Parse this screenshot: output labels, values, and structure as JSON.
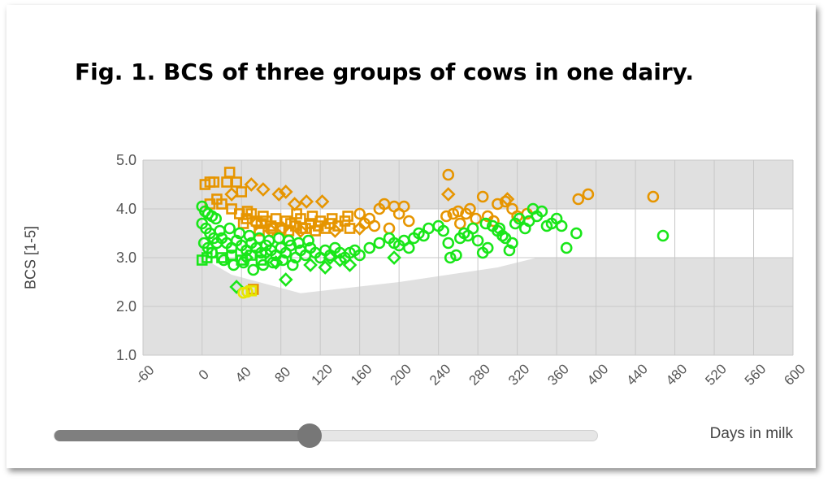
{
  "figure": {
    "title": "Fig. 1. BCS of three groups of cows in one dairy."
  },
  "slider": {
    "value_fraction": 0.47
  },
  "colors": {
    "orange": "#e69500",
    "green": "#19e619",
    "yellow": "#e6e600",
    "band_gray": "#e0e0e0",
    "band_white": "#ffffff",
    "grid": "#c8c8c8"
  },
  "chart_data": {
    "type": "scatter",
    "title": "",
    "xlabel": "Days in milk",
    "ylabel": "BCS [1-5]",
    "xlim": [
      -60,
      600
    ],
    "ylim": [
      1.0,
      5.0
    ],
    "x_ticks": [
      "-60",
      "0",
      "40",
      "80",
      "120",
      "160",
      "200",
      "240",
      "280",
      "320",
      "360",
      "400",
      "440",
      "480",
      "520",
      "560",
      "600"
    ],
    "y_ticks": [
      "1.0",
      "2.0",
      "3.0",
      "4.0",
      "5.0"
    ],
    "grid": true,
    "reference_band": {
      "upper": [
        [
          0,
          4.0
        ],
        [
          600,
          4.0
        ]
      ],
      "lower": [
        [
          0,
          3.0
        ],
        [
          30,
          2.65
        ],
        [
          100,
          2.27
        ],
        [
          200,
          2.5
        ],
        [
          300,
          2.8
        ],
        [
          340,
          3.0
        ],
        [
          600,
          3.0
        ]
      ]
    },
    "series": [
      {
        "color": "orange",
        "marker": "square",
        "points": [
          [
            3,
            4.5
          ],
          [
            8,
            4.55
          ],
          [
            12,
            4.55
          ],
          [
            25,
            4.55
          ],
          [
            28,
            4.75
          ],
          [
            35,
            4.55
          ],
          [
            40,
            4.35
          ],
          [
            8,
            4.1
          ],
          [
            15,
            4.2
          ],
          [
            20,
            4.1
          ],
          [
            30,
            4.0
          ],
          [
            38,
            3.9
          ],
          [
            45,
            3.8
          ],
          [
            50,
            3.9
          ],
          [
            55,
            3.75
          ],
          [
            60,
            3.7
          ],
          [
            65,
            3.75
          ],
          [
            70,
            3.65
          ],
          [
            75,
            3.8
          ],
          [
            80,
            3.6
          ],
          [
            85,
            3.75
          ],
          [
            90,
            3.7
          ],
          [
            95,
            3.65
          ],
          [
            100,
            3.8
          ],
          [
            105,
            3.6
          ],
          [
            110,
            3.7
          ],
          [
            115,
            3.55
          ],
          [
            120,
            3.75
          ],
          [
            125,
            3.6
          ],
          [
            130,
            3.7
          ],
          [
            138,
            3.65
          ],
          [
            145,
            3.75
          ],
          [
            150,
            3.6
          ],
          [
            42,
            3.7
          ],
          [
            58,
            3.55
          ],
          [
            72,
            3.6
          ],
          [
            88,
            3.55
          ],
          [
            102,
            3.6
          ],
          [
            118,
            3.65
          ],
          [
            46,
            3.95
          ],
          [
            62,
            3.85
          ],
          [
            96,
            3.9
          ],
          [
            112,
            3.85
          ],
          [
            132,
            3.8
          ],
          [
            148,
            3.85
          ],
          [
            52,
            2.35
          ]
        ]
      },
      {
        "color": "orange",
        "marker": "diamond",
        "points": [
          [
            30,
            4.3
          ],
          [
            50,
            4.5
          ],
          [
            62,
            4.4
          ],
          [
            78,
            4.3
          ],
          [
            85,
            4.35
          ],
          [
            94,
            4.1
          ],
          [
            106,
            4.15
          ],
          [
            122,
            4.15
          ],
          [
            250,
            4.3
          ],
          [
            310,
            4.2
          ],
          [
            55,
            3.7
          ],
          [
            70,
            3.55
          ],
          [
            82,
            3.6
          ],
          [
            100,
            3.55
          ],
          [
            135,
            3.55
          ],
          [
            160,
            3.6
          ]
        ]
      },
      {
        "color": "orange",
        "marker": "circle",
        "points": [
          [
            160,
            3.9
          ],
          [
            170,
            3.8
          ],
          [
            180,
            4.0
          ],
          [
            185,
            4.1
          ],
          [
            195,
            4.05
          ],
          [
            200,
            3.9
          ],
          [
            205,
            4.05
          ],
          [
            165,
            3.7
          ],
          [
            175,
            3.65
          ],
          [
            190,
            3.6
          ],
          [
            210,
            3.75
          ],
          [
            250,
            4.7
          ],
          [
            255,
            3.9
          ],
          [
            260,
            3.95
          ],
          [
            268,
            3.9
          ],
          [
            272,
            4.0
          ],
          [
            285,
            4.25
          ],
          [
            290,
            3.85
          ],
          [
            300,
            4.1
          ],
          [
            308,
            4.15
          ],
          [
            315,
            4.0
          ],
          [
            330,
            3.9
          ],
          [
            382,
            4.2
          ],
          [
            392,
            4.3
          ],
          [
            458,
            4.25
          ],
          [
            248,
            3.85
          ],
          [
            262,
            3.7
          ],
          [
            278,
            3.8
          ],
          [
            296,
            3.75
          ],
          [
            320,
            3.85
          ]
        ]
      },
      {
        "color": "green",
        "marker": "circle",
        "points": [
          [
            0,
            4.05
          ],
          [
            3,
            3.95
          ],
          [
            6,
            3.9
          ],
          [
            10,
            3.85
          ],
          [
            14,
            3.8
          ],
          [
            0,
            3.7
          ],
          [
            4,
            3.6
          ],
          [
            8,
            3.5
          ],
          [
            12,
            3.4
          ],
          [
            2,
            3.3
          ],
          [
            6,
            3.2
          ],
          [
            10,
            3.1
          ],
          [
            15,
            3.3
          ],
          [
            20,
            3.4
          ],
          [
            25,
            3.3
          ],
          [
            30,
            3.2
          ],
          [
            35,
            3.35
          ],
          [
            40,
            3.25
          ],
          [
            45,
            3.15
          ],
          [
            50,
            3.3
          ],
          [
            55,
            3.2
          ],
          [
            60,
            3.1
          ],
          [
            65,
            3.25
          ],
          [
            70,
            3.15
          ],
          [
            75,
            3.05
          ],
          [
            80,
            3.2
          ],
          [
            85,
            3.1
          ],
          [
            90,
            3.25
          ],
          [
            95,
            3.0
          ],
          [
            100,
            3.15
          ],
          [
            105,
            3.05
          ],
          [
            110,
            3.2
          ],
          [
            115,
            3.1
          ],
          [
            120,
            3.0
          ],
          [
            125,
            3.15
          ],
          [
            130,
            3.05
          ],
          [
            135,
            3.2
          ],
          [
            140,
            3.1
          ],
          [
            145,
            3.0
          ],
          [
            150,
            3.1
          ],
          [
            155,
            3.15
          ],
          [
            160,
            3.05
          ],
          [
            18,
            3.55
          ],
          [
            28,
            3.6
          ],
          [
            38,
            3.5
          ],
          [
            48,
            3.45
          ],
          [
            58,
            3.4
          ],
          [
            68,
            3.35
          ],
          [
            78,
            3.4
          ],
          [
            88,
            3.35
          ],
          [
            98,
            3.3
          ],
          [
            108,
            3.35
          ],
          [
            22,
            2.95
          ],
          [
            32,
            2.85
          ],
          [
            42,
            2.9
          ],
          [
            52,
            2.75
          ],
          [
            62,
            2.85
          ],
          [
            72,
            2.9
          ],
          [
            82,
            2.95
          ],
          [
            92,
            2.85
          ],
          [
            170,
            3.2
          ],
          [
            180,
            3.3
          ],
          [
            190,
            3.4
          ],
          [
            195,
            3.3
          ],
          [
            200,
            3.25
          ],
          [
            205,
            3.35
          ],
          [
            210,
            3.2
          ],
          [
            215,
            3.4
          ],
          [
            220,
            3.5
          ],
          [
            225,
            3.45
          ],
          [
            230,
            3.6
          ],
          [
            240,
            3.65
          ],
          [
            245,
            3.55
          ],
          [
            250,
            3.3
          ],
          [
            252,
            3.0
          ],
          [
            258,
            3.05
          ],
          [
            262,
            3.4
          ],
          [
            266,
            3.5
          ],
          [
            270,
            3.45
          ],
          [
            275,
            3.6
          ],
          [
            280,
            3.35
          ],
          [
            285,
            3.1
          ],
          [
            290,
            3.2
          ],
          [
            295,
            3.65
          ],
          [
            300,
            3.55
          ],
          [
            305,
            3.45
          ],
          [
            308,
            3.4
          ],
          [
            312,
            3.15
          ],
          [
            315,
            3.3
          ],
          [
            318,
            3.7
          ],
          [
            322,
            3.8
          ],
          [
            328,
            3.6
          ],
          [
            332,
            3.75
          ],
          [
            336,
            4.0
          ],
          [
            340,
            3.85
          ],
          [
            345,
            3.95
          ],
          [
            350,
            3.65
          ],
          [
            355,
            3.7
          ],
          [
            360,
            3.8
          ],
          [
            365,
            3.65
          ],
          [
            370,
            3.2
          ],
          [
            380,
            3.5
          ],
          [
            468,
            3.45
          ],
          [
            288,
            3.7
          ],
          [
            302,
            3.6
          ]
        ]
      },
      {
        "color": "green",
        "marker": "diamond",
        "points": [
          [
            35,
            2.4
          ],
          [
            85,
            2.55
          ],
          [
            110,
            2.85
          ],
          [
            125,
            2.8
          ],
          [
            150,
            2.85
          ],
          [
            195,
            3.0
          ],
          [
            45,
            3.0
          ],
          [
            65,
            3.1
          ],
          [
            75,
            2.9
          ],
          [
            130,
            3.0
          ],
          [
            140,
            2.95
          ]
        ]
      },
      {
        "color": "green",
        "marker": "square",
        "points": [
          [
            0,
            2.95
          ],
          [
            5,
            3.0
          ],
          [
            10,
            3.1
          ],
          [
            20,
            3.0
          ],
          [
            30,
            3.05
          ],
          [
            40,
            2.95
          ],
          [
            50,
            3.05
          ],
          [
            60,
            2.95
          ]
        ]
      },
      {
        "color": "yellow",
        "marker": "circle",
        "points": [
          [
            42,
            2.28
          ],
          [
            46,
            2.3
          ]
        ]
      },
      {
        "color": "yellow",
        "marker": "square",
        "points": [
          [
            50,
            2.32
          ]
        ]
      }
    ]
  }
}
